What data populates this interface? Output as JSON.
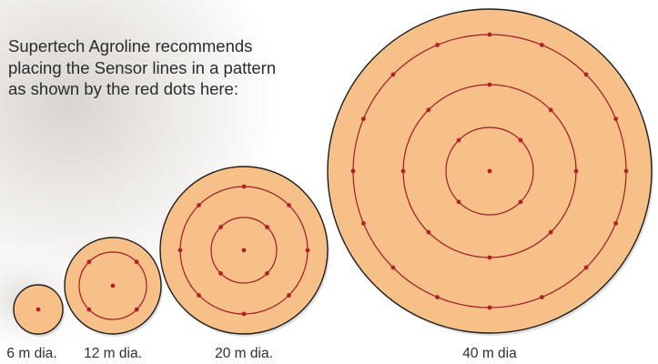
{
  "intro": {
    "lines": [
      "Supertech Agroline recommends",
      "placing the Sensor lines in a pattern",
      "as shown by the red dots here:"
    ]
  },
  "colors": {
    "disc_fill": "#f8c089",
    "disc_outline": "#1e1e1e",
    "ring": "#9e1a24",
    "dot": "#b3202a",
    "text": "#2b2b2b"
  },
  "fields": [
    {
      "label": "6 m dia.",
      "diameter_m": 6,
      "rings": []
    },
    {
      "label": "12 m dia.",
      "diameter_m": 12,
      "rings": [
        {
          "dots": 4
        }
      ]
    },
    {
      "label": "20 m dia.",
      "diameter_m": 20,
      "rings": [
        {
          "dots": 4
        },
        {
          "dots": 8
        }
      ]
    },
    {
      "label": "40 m dia",
      "diameter_m": 40,
      "rings": [
        {
          "dots": 4
        },
        {
          "dots": 8
        },
        {
          "dots": 16
        }
      ]
    }
  ]
}
